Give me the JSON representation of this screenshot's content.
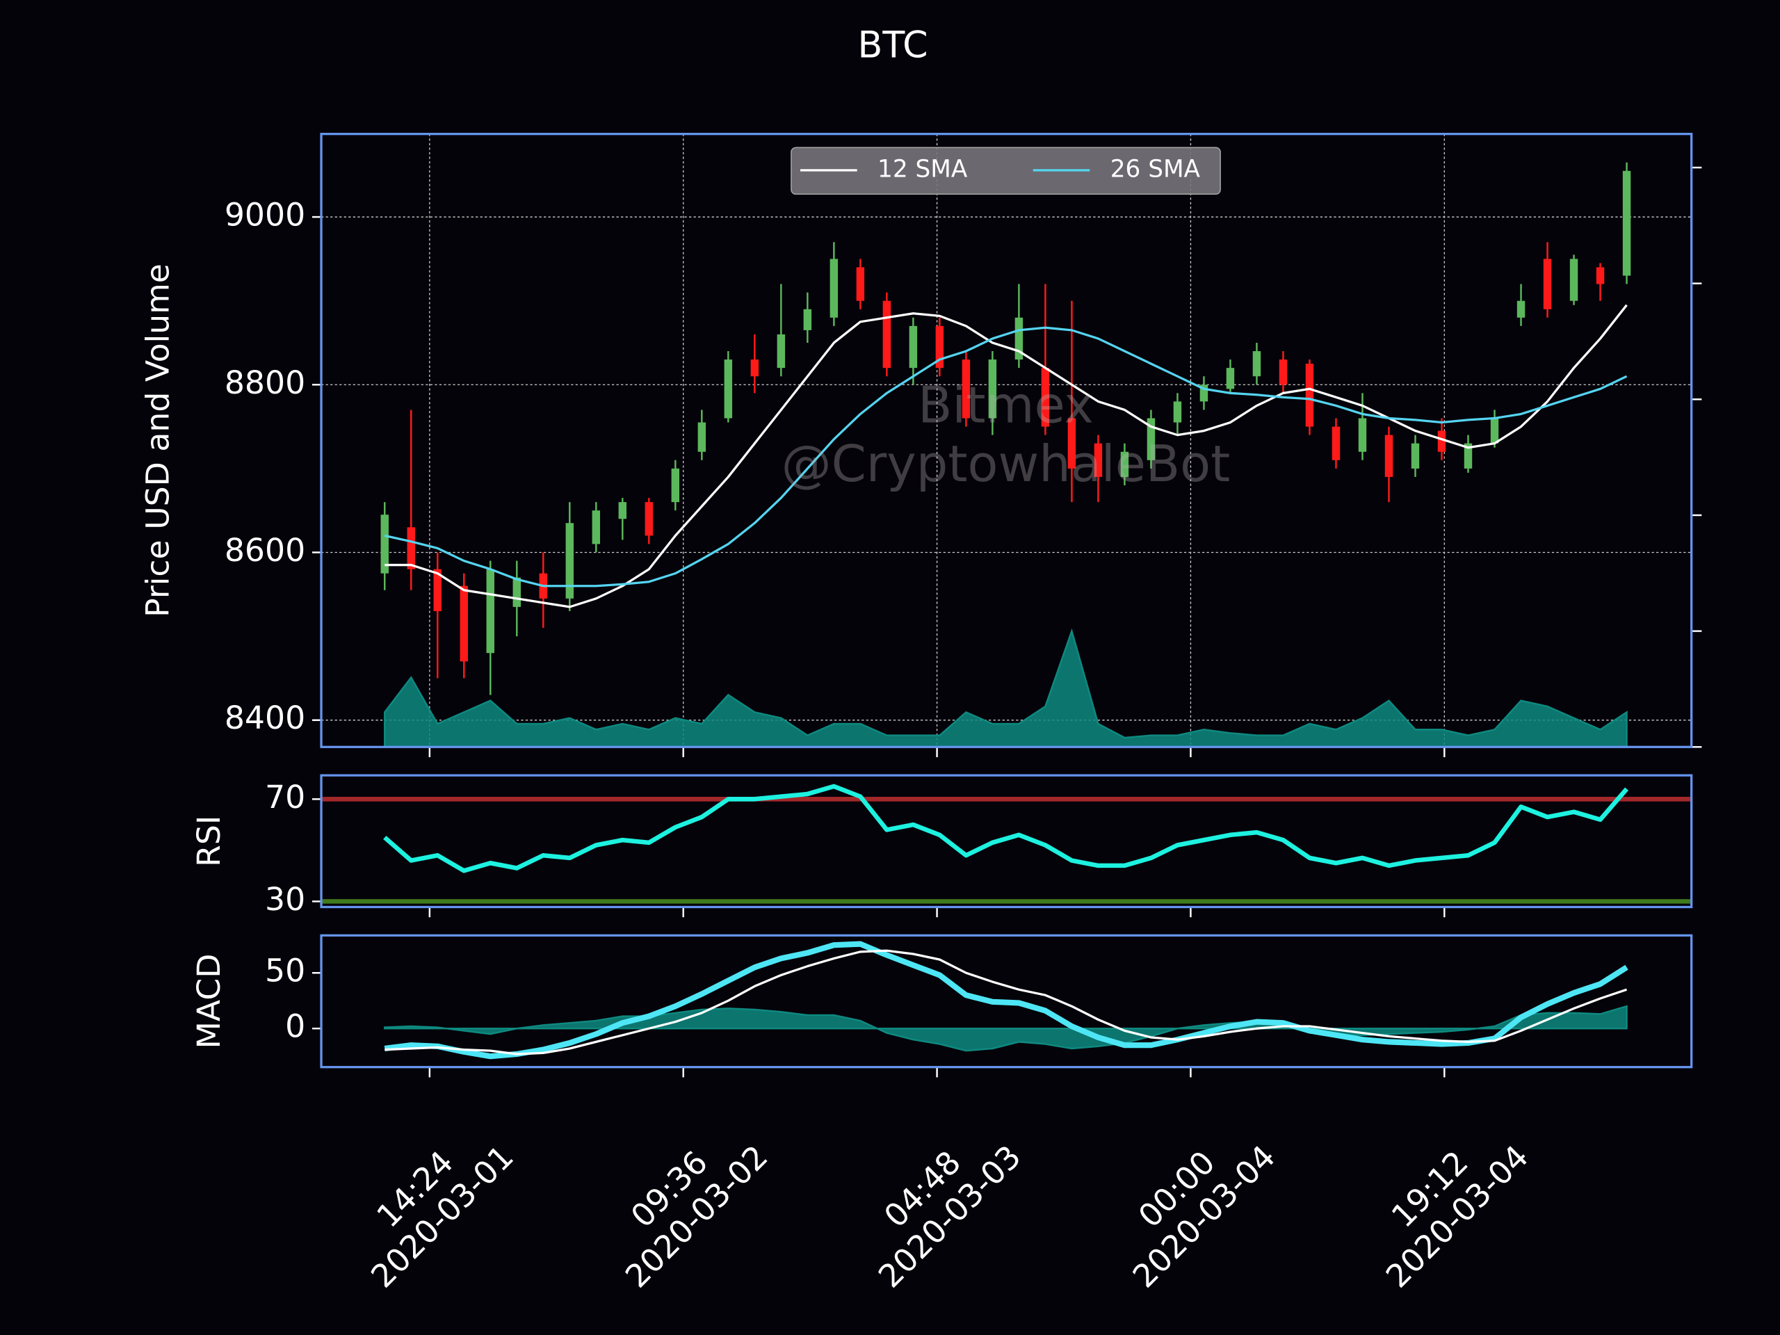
{
  "chart_data": [
    {
      "type": "candlestick",
      "title": "BTC",
      "ylabel": "Price USD and Volume",
      "x": [
        11,
        13,
        15,
        17,
        19,
        21,
        23,
        25,
        27,
        29,
        31,
        33,
        35,
        37,
        39,
        41,
        43,
        45,
        47,
        49,
        51,
        53,
        55,
        57,
        59,
        61,
        63,
        65,
        67,
        69,
        71,
        73,
        75,
        77,
        79,
        81,
        83,
        85,
        87,
        89,
        91,
        93,
        95,
        97,
        99,
        101,
        103,
        105
      ],
      "open": [
        8575,
        8630,
        8580,
        8560,
        8480,
        8535,
        8575,
        8545,
        8610,
        8640,
        8660,
        8660,
        8720,
        8760,
        8830,
        8820,
        8865,
        8880,
        8940,
        8900,
        8820,
        8870,
        8830,
        8760,
        8830,
        8820,
        8760,
        8730,
        8690,
        8710,
        8755,
        8780,
        8795,
        8810,
        8830,
        8825,
        8750,
        8720,
        8740,
        8700,
        8745,
        8700,
        8730,
        8880,
        8950,
        8900,
        8940,
        8930
      ],
      "high": [
        8660,
        8770,
        8600,
        8575,
        8590,
        8590,
        8600,
        8660,
        8660,
        8665,
        8665,
        8710,
        8770,
        8840,
        8860,
        8920,
        8910,
        8970,
        8950,
        8910,
        8880,
        8880,
        8840,
        8840,
        8920,
        8920,
        8900,
        8740,
        8730,
        8770,
        8790,
        8810,
        8830,
        8850,
        8840,
        8830,
        8760,
        8790,
        8750,
        8740,
        8760,
        8740,
        8770,
        8920,
        8970,
        8955,
        8945,
        9065
      ],
      "low": [
        8555,
        8555,
        8450,
        8450,
        8430,
        8500,
        8510,
        8530,
        8600,
        8615,
        8610,
        8650,
        8710,
        8755,
        8790,
        8810,
        8850,
        8870,
        8890,
        8810,
        8800,
        8810,
        8750,
        8740,
        8820,
        8740,
        8660,
        8660,
        8680,
        8700,
        8740,
        8770,
        8790,
        8800,
        8790,
        8740,
        8700,
        8710,
        8660,
        8690,
        8710,
        8695,
        8725,
        8870,
        8880,
        8895,
        8900,
        8920
      ],
      "close": [
        8645,
        8580,
        8530,
        8470,
        8580,
        8570,
        8545,
        8635,
        8650,
        8660,
        8620,
        8700,
        8755,
        8830,
        8810,
        8860,
        8890,
        8950,
        8900,
        8820,
        8870,
        8820,
        8760,
        8830,
        8880,
        8750,
        8700,
        8690,
        8720,
        8760,
        8780,
        8800,
        8820,
        8840,
        8800,
        8750,
        8710,
        8760,
        8690,
        8730,
        8720,
        8730,
        8760,
        8900,
        8890,
        8950,
        8920,
        9055
      ],
      "up_color": "#5cb85c",
      "down_color": "#ff1a1a",
      "series": [
        {
          "name": "12 SMA",
          "color": "#ffffff",
          "width": 2,
          "values": [
            8585,
            8585,
            8575,
            8555,
            8550,
            8545,
            8540,
            8535,
            8545,
            8560,
            8580,
            8620,
            8655,
            8690,
            8730,
            8770,
            8810,
            8850,
            8875,
            8880,
            8885,
            8882,
            8870,
            8850,
            8840,
            8820,
            8800,
            8780,
            8770,
            8750,
            8740,
            8745,
            8755,
            8775,
            8790,
            8795,
            8785,
            8775,
            8760,
            8745,
            8735,
            8725,
            8730,
            8750,
            8780,
            8820,
            8855,
            8895
          ]
        },
        {
          "name": "26 SMA",
          "color": "#55d4f0",
          "width": 2,
          "values": [
            8620,
            8613,
            8605,
            8590,
            8580,
            8568,
            8560,
            8560,
            8560,
            8562,
            8565,
            8575,
            8592,
            8610,
            8635,
            8665,
            8700,
            8735,
            8765,
            8790,
            8810,
            8830,
            8840,
            8855,
            8865,
            8868,
            8865,
            8855,
            8840,
            8825,
            8810,
            8795,
            8790,
            8788,
            8785,
            8783,
            8775,
            8765,
            8760,
            8758,
            8755,
            8758,
            8760,
            8765,
            8775,
            8785,
            8795,
            8810
          ]
        }
      ],
      "areas": [
        {
          "axis": "y2",
          "color": "#0e8a80",
          "values": [
            0.3,
            0.6,
            0.2,
            0.3,
            0.4,
            0.2,
            0.2,
            0.25,
            0.15,
            0.2,
            0.15,
            0.25,
            0.2,
            0.45,
            0.3,
            0.25,
            0.1,
            0.2,
            0.2,
            0.1,
            0.1,
            0.1,
            0.3,
            0.2,
            0.2,
            0.35,
            1.0,
            0.2,
            0.08,
            0.1,
            0.1,
            0.15,
            0.12,
            0.1,
            0.1,
            0.2,
            0.15,
            0.25,
            0.4,
            0.15,
            0.15,
            0.1,
            0.15,
            0.4,
            0.35,
            0.25,
            0.15,
            0.3
          ]
        }
      ],
      "xlim": [
        6.2,
        109.9
      ],
      "xticks": [
        14.4,
        33.6,
        52.8,
        72,
        91.2
      ],
      "ylim": [
        8368,
        9099
      ],
      "yticks": [
        8400,
        8600,
        8800,
        9000
      ],
      "y2lim": [
        0,
        5.29
      ],
      "y2ticks": [
        0,
        1,
        2,
        3,
        4,
        5
      ],
      "grid": true,
      "legend": "upper center",
      "annotations": [
        "Bitmex",
        "@CryptowhaleBot"
      ]
    },
    {
      "type": "line",
      "ylabel": "RSI",
      "x": [
        11,
        13,
        15,
        17,
        19,
        21,
        23,
        25,
        27,
        29,
        31,
        33,
        35,
        37,
        39,
        41,
        43,
        45,
        47,
        49,
        51,
        53,
        55,
        57,
        59,
        61,
        63,
        65,
        67,
        69,
        71,
        73,
        75,
        77,
        79,
        81,
        83,
        85,
        87,
        89,
        91,
        93,
        95,
        97,
        99,
        101,
        103,
        105
      ],
      "series": [
        {
          "color": "#1df2e0",
          "width": 4,
          "values": [
            55,
            46,
            48,
            42,
            45,
            43,
            48,
            47,
            52,
            54,
            53,
            59,
            63,
            70,
            70,
            71,
            72,
            75,
            71,
            58,
            60,
            56,
            48,
            53,
            56,
            52,
            46,
            44,
            44,
            47,
            52,
            54,
            56,
            57,
            54,
            47,
            45,
            47,
            44,
            46,
            47,
            48,
            53,
            67,
            63,
            65,
            62,
            74
          ]
        }
      ],
      "hlines": [
        {
          "value": 70,
          "color": "#a3282a"
        },
        {
          "value": 30,
          "color": "#3f7a1c"
        }
      ],
      "xlim": [
        6.2,
        109.9
      ],
      "xticks": [
        14.4,
        33.6,
        52.8,
        72,
        91.2
      ],
      "ylim": [
        27.8,
        79.3
      ],
      "yticks": [
        30,
        70
      ],
      "grid": false
    },
    {
      "type": "line",
      "ylabel": "MACD",
      "x": [
        11,
        13,
        15,
        17,
        19,
        21,
        23,
        25,
        27,
        29,
        31,
        33,
        35,
        37,
        39,
        41,
        43,
        45,
        47,
        49,
        51,
        53,
        55,
        57,
        59,
        61,
        63,
        65,
        67,
        69,
        71,
        73,
        75,
        77,
        79,
        81,
        83,
        85,
        87,
        89,
        91,
        93,
        95,
        97,
        99,
        101,
        103,
        105
      ],
      "areas": [
        {
          "color": "#0e8a80",
          "values": [
            1,
            2,
            1,
            -2,
            -5,
            0,
            3,
            5,
            7,
            11,
            11,
            14,
            17,
            18,
            17,
            15,
            12,
            12,
            7,
            -4,
            -10,
            -14,
            -20,
            -18,
            -12,
            -14,
            -18,
            -16,
            -13,
            -7,
            0,
            3,
            5,
            6,
            3,
            -4,
            -5,
            -6,
            -5,
            -4,
            -3,
            -1,
            2,
            12,
            14,
            14,
            13,
            20
          ]
        }
      ],
      "series": [
        {
          "color": "#4ee6f5",
          "width": 5,
          "values": [
            -18,
            -15,
            -16,
            -21,
            -25,
            -23,
            -19,
            -13,
            -5,
            5,
            11,
            20,
            31,
            43,
            55,
            63,
            68,
            75,
            76,
            66,
            57,
            48,
            30,
            24,
            23,
            16,
            2,
            -8,
            -15,
            -15,
            -10,
            -4,
            2,
            6,
            5,
            -2,
            -6,
            -10,
            -12,
            -13,
            -14,
            -13,
            -9,
            10,
            22,
            32,
            40,
            55
          ]
        },
        {
          "color": "#ffffff",
          "width": 2,
          "values": [
            -19,
            -18,
            -17,
            -19,
            -20,
            -23,
            -22,
            -18,
            -12,
            -6,
            0,
            6,
            14,
            25,
            38,
            48,
            56,
            63,
            69,
            70,
            67,
            62,
            50,
            42,
            35,
            30,
            20,
            8,
            -2,
            -8,
            -10,
            -7,
            -3,
            0,
            2,
            2,
            -1,
            -4,
            -7,
            -9,
            -11,
            -12,
            -11,
            -2,
            8,
            18,
            27,
            35
          ]
        }
      ],
      "xlim": [
        6.2,
        109.9
      ],
      "xticks": [
        {
          "value": 14.4,
          "label": "14:24\n2020-03-01"
        },
        {
          "value": 33.6,
          "label": "09:36\n2020-03-02"
        },
        {
          "value": 52.8,
          "label": "04:48\n2020-03-03"
        },
        {
          "value": 72,
          "label": "00:00\n2020-03-04"
        },
        {
          "value": 91.2,
          "label": "19:12\n2020-03-04"
        }
      ],
      "ylim": [
        -34.7,
        83.7
      ],
      "yticks": [
        0,
        50
      ],
      "grid": false
    }
  ]
}
